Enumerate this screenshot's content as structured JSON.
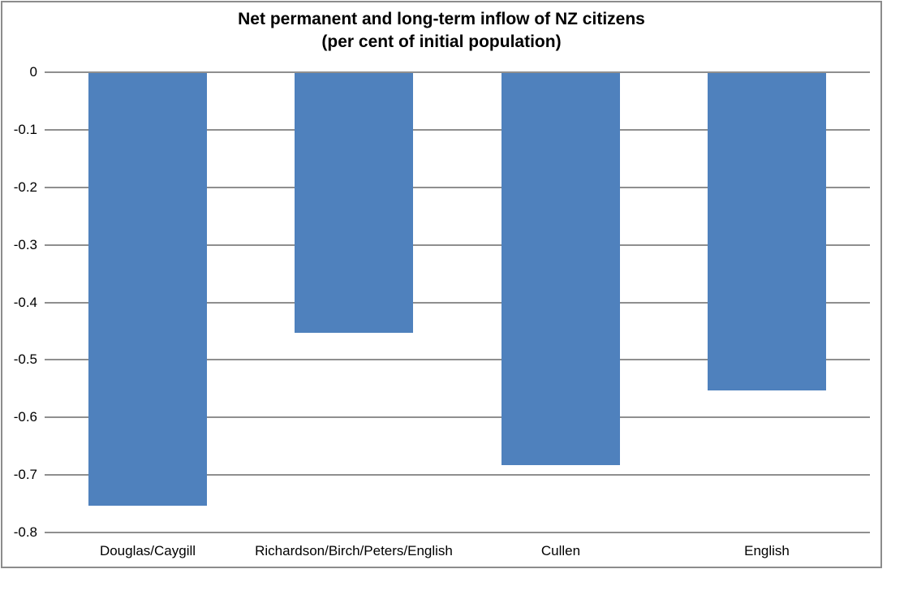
{
  "chart_data": {
    "type": "bar",
    "title_line1": "Net permanent and long-term inflow of NZ citizens",
    "title_line2": "(per cent of initial population)",
    "categories": [
      "Douglas/Caygill",
      "Richardson/Birch/Peters/English",
      "Cullen",
      "English"
    ],
    "values": [
      -0.755,
      -0.455,
      -0.685,
      -0.555
    ],
    "xlabel": "",
    "ylabel": "",
    "ylim": [
      -0.8,
      0
    ],
    "ytick_step": 0.1,
    "ytick_labels": [
      "0",
      "-0.1",
      "-0.2",
      "-0.3",
      "-0.4",
      "-0.5",
      "-0.6",
      "-0.7",
      "-0.8"
    ],
    "grid": true,
    "legend_position": "none",
    "bar_color": "#4F81BD",
    "gridline_color": "#8f8f8f",
    "frame_border_color": "#8c8c8c",
    "background_color": "#ffffff",
    "text_color": "#000000"
  }
}
